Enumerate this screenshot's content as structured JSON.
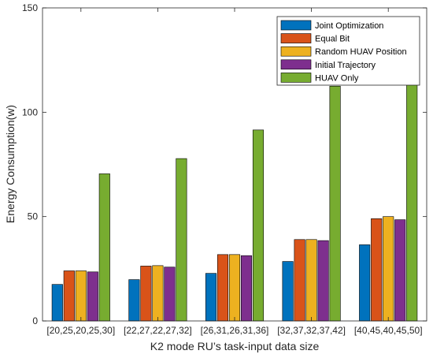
{
  "chart_data": {
    "type": "bar",
    "xlabel": "K2 mode RU’s task-input data size",
    "ylabel": "Energy Consumption(w)",
    "ylim": [
      0,
      150
    ],
    "yticks": [
      0,
      50,
      100,
      150
    ],
    "categories": [
      "[20,25,20,25,30]",
      "[22,27,22,27,32]",
      "[26,31,26,31,36]",
      "[32,37,32,37,42]",
      "[40,45,40,45,50]"
    ],
    "series": [
      {
        "name": "Joint Optimization",
        "color": "#0072BD",
        "values": [
          17.5,
          19.8,
          22.8,
          28.5,
          36.5
        ]
      },
      {
        "name": "Equal Bit",
        "color": "#D95319",
        "values": [
          24.0,
          26.3,
          31.8,
          39.0,
          49.0
        ]
      },
      {
        "name": "Random HUAV Position",
        "color": "#EDB120",
        "values": [
          24.0,
          26.5,
          31.8,
          39.0,
          50.0
        ]
      },
      {
        "name": "Initial Trajectory",
        "color": "#7E2F8E",
        "values": [
          23.5,
          25.8,
          31.3,
          38.5,
          48.5
        ]
      },
      {
        "name": "HUAV Only",
        "color": "#77AC30",
        "values": [
          70.5,
          77.8,
          91.5,
          112.5,
          115.5
        ]
      }
    ],
    "legend_position": "top-right",
    "grid": false
  }
}
